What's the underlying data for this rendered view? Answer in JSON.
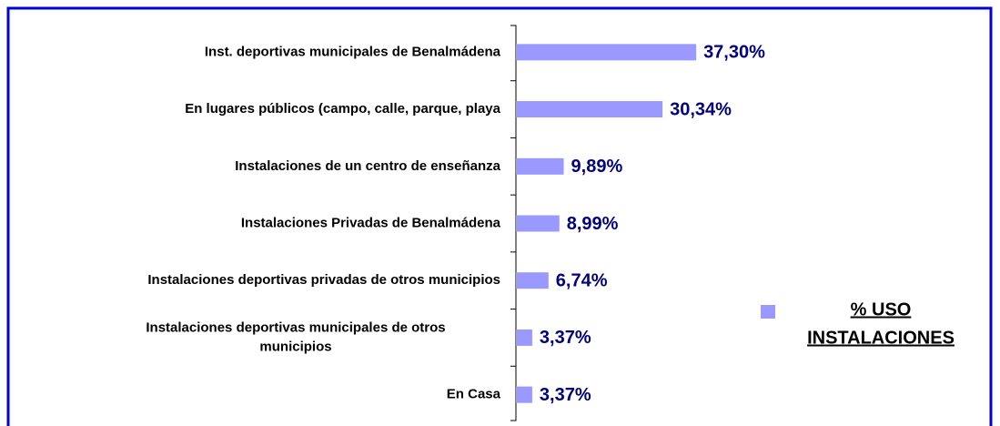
{
  "chart_data": {
    "type": "barh",
    "categories": [
      "Inst. deportivas municipales de Benalmádena",
      "En lugares públicos (campo, calle, parque, playa",
      "Instalaciones de un centro de enseñanza",
      "Instalaciones Privadas de Benalmádena",
      "Instalaciones deportivas privadas de otros municipios",
      "Instalaciones deportivas municipales de otros\nmunicipios",
      "En Casa"
    ],
    "series": [
      {
        "name": "% USO\nINSTALACIONES",
        "color": "#9999ff",
        "values": [
          37.3,
          30.34,
          9.89,
          8.99,
          6.74,
          3.37,
          3.37
        ],
        "value_labels": [
          "37,30%",
          "30,34%",
          "9,89%",
          "8,99%",
          "6,74%",
          "3,37%",
          "3,37%"
        ]
      }
    ],
    "xlim": [
      0,
      100
    ],
    "legend": "right"
  }
}
